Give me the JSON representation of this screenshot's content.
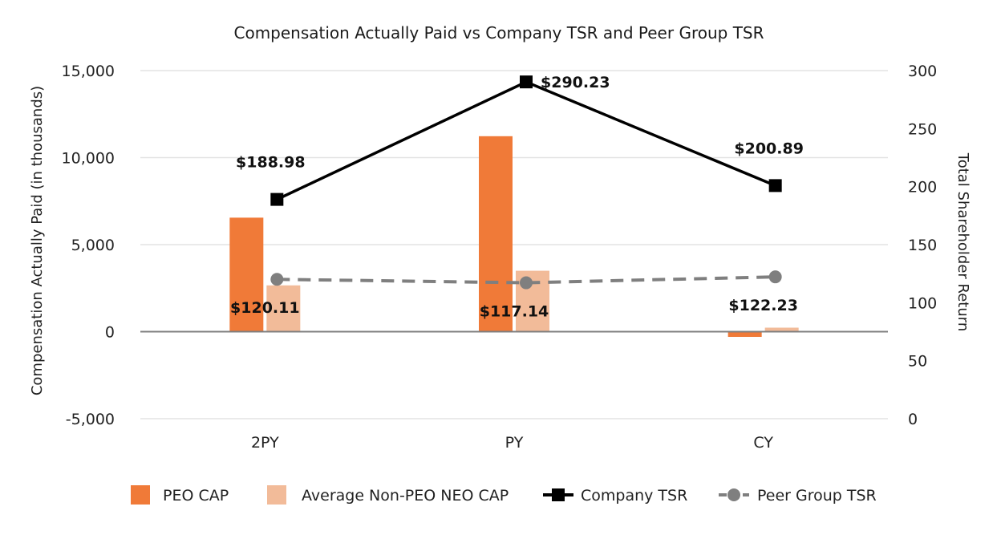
{
  "chart_data": {
    "type": "bar",
    "title": "Compensation Actually Paid vs Company TSR and Peer Group TSR",
    "categories": [
      "2PY",
      "PY",
      "CY"
    ],
    "ylabel": "Compensation Actually Paid (in thousands)",
    "y2label": "Total Shareholder Return",
    "ylim": [
      -5000,
      15000
    ],
    "yticks": [
      -5000,
      0,
      5000,
      10000,
      15000
    ],
    "ytick_labels": [
      "-5,000",
      "0",
      "5,000",
      "10,000",
      "15,000"
    ],
    "y2lim": [
      0,
      300
    ],
    "y2ticks": [
      0,
      50,
      100,
      150,
      200,
      250,
      300
    ],
    "y2tick_labels": [
      "0",
      "50",
      "100",
      "150",
      "200",
      "250",
      "300"
    ],
    "legend_position": "bottom",
    "series": [
      {
        "name": "PEO CAP",
        "type": "bar",
        "axis": "left",
        "color": "#f07a38",
        "values": [
          6550,
          11230,
          -300
        ]
      },
      {
        "name": "Average Non-PEO NEO CAP",
        "type": "bar",
        "axis": "left",
        "color": "#f2bb99",
        "values": [
          2660,
          3500,
          230
        ]
      },
      {
        "name": "Company TSR",
        "type": "line",
        "axis": "right",
        "color": "#000000",
        "marker": "square",
        "values": [
          188.98,
          290.23,
          200.89
        ],
        "labels": [
          "$188.98",
          "$290.23",
          "$200.89"
        ]
      },
      {
        "name": "Peer Group TSR",
        "type": "line",
        "axis": "right",
        "color": "#7f7f7f",
        "marker": "circle",
        "dashed": true,
        "values": [
          120.11,
          117.14,
          122.23
        ],
        "labels": [
          "$120.11",
          "$117.14",
          "$122.23"
        ]
      }
    ]
  }
}
